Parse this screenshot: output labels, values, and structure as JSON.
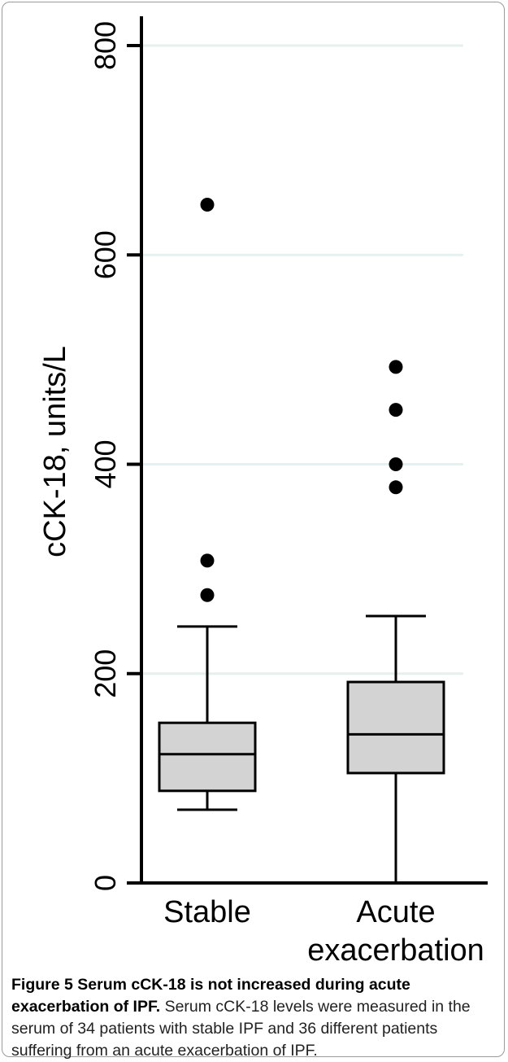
{
  "chart_data": {
    "type": "box",
    "ylabel": "cCK-18, units/L",
    "xlabel": "",
    "ylim": [
      0,
      800
    ],
    "yticks": [
      0,
      200,
      400,
      600,
      800
    ],
    "grid": true,
    "categories": [
      "Stable",
      "Acute exacerbation"
    ],
    "category_label_lines": [
      [
        "Stable"
      ],
      [
        "Acute",
        "exacerbation"
      ]
    ],
    "boxes": [
      {
        "name": "Stable",
        "whisker_low": 70,
        "q1": 88,
        "median": 123,
        "q3": 153,
        "whisker_high": 245,
        "outliers": [
          275,
          308,
          648
        ]
      },
      {
        "name": "Acute exacerbation",
        "whisker_low": 0,
        "q1": 105,
        "median": 142,
        "q3": 192,
        "whisker_high": 255,
        "outliers": [
          378,
          400,
          452,
          493
        ]
      }
    ],
    "colors": {
      "box_fill": "#d3d3d3",
      "stroke": "#000000",
      "grid": "#e6f0ee"
    }
  },
  "caption": {
    "label": "Figure 5 Serum cCK-18 is not increased during acute exacerbation of IPF.",
    "text": "Serum cCK-18 levels were measured in the serum of 34 patients with stable IPF and 36 different patients suffering from an acute exacerbation of IPF."
  }
}
